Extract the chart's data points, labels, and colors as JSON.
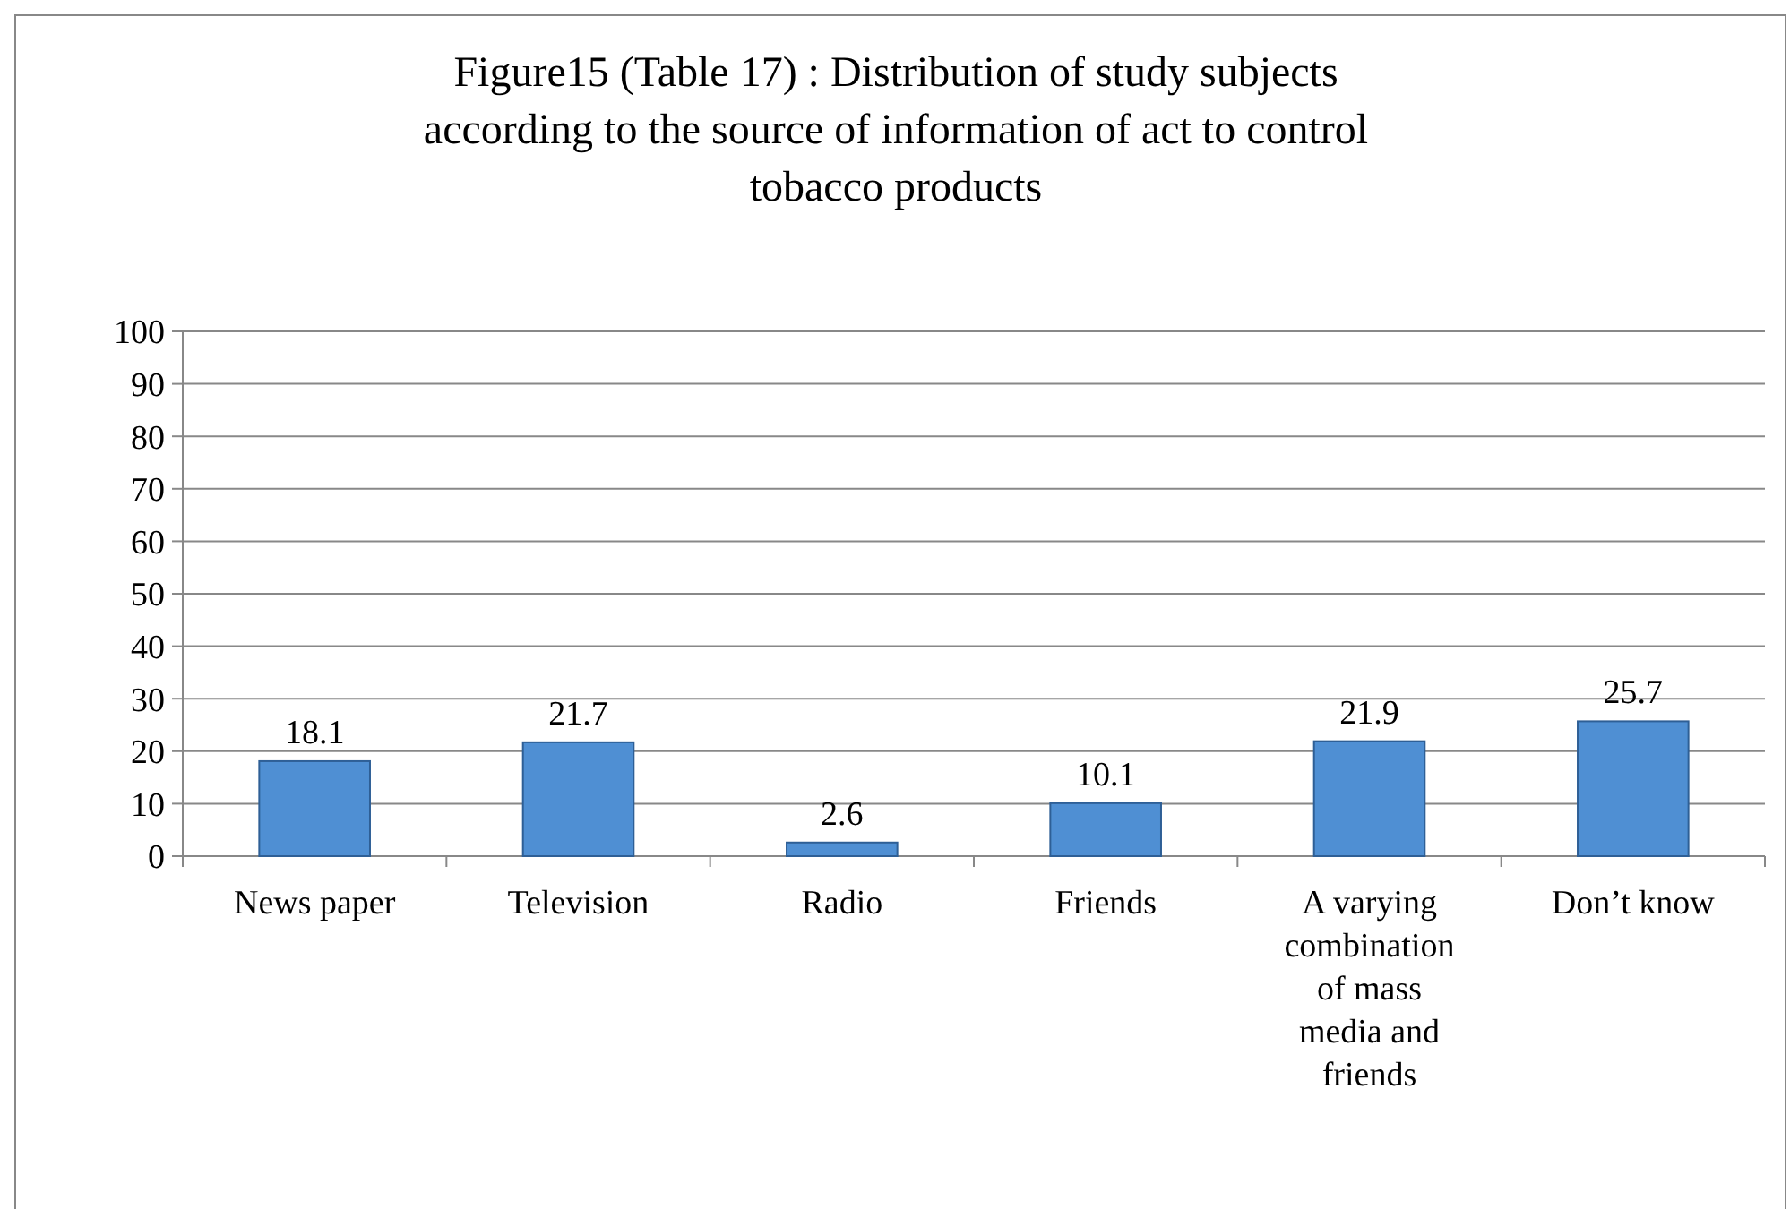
{
  "chart_data": {
    "type": "bar",
    "title": "Figure15 (Table 17) : Distribution of study subjects according to the source of information of act to control tobacco products",
    "categories": [
      "News paper",
      "Television",
      "Radio",
      "Friends",
      "A varying combination of mass media and friends",
      "Don’t know"
    ],
    "values": [
      18.1,
      21.7,
      2.6,
      10.1,
      21.9,
      25.7
    ],
    "color": "#4f8fd3",
    "ylim": [
      0,
      100
    ],
    "yticks": [
      0,
      10,
      20,
      30,
      40,
      50,
      60,
      70,
      80,
      90,
      100
    ],
    "grid": "y",
    "data_labels": true
  }
}
